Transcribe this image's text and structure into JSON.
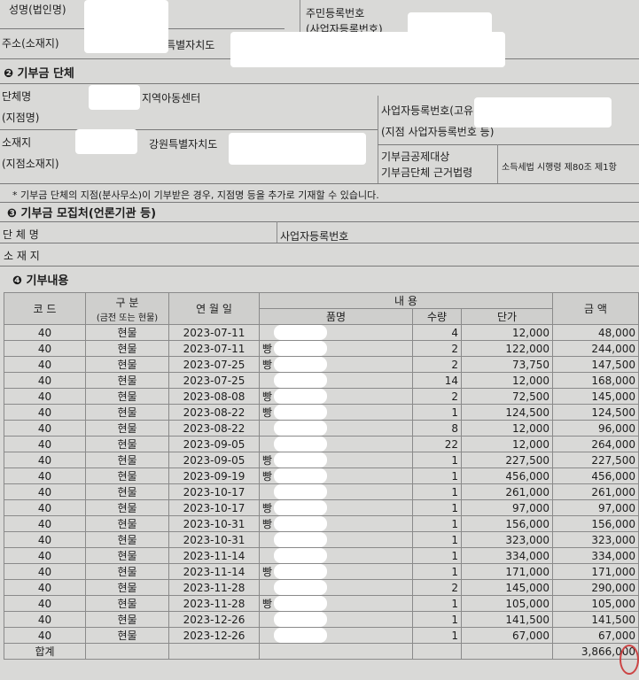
{
  "donor": {
    "name_label": "성명(법인명)",
    "id_label": "주민등록번호",
    "id_label2": "(사업자등록번호)",
    "address_label": "주소(소재지)",
    "address_value": "강원특별자치도"
  },
  "org": {
    "section": "❷ 기부금 단체",
    "name_label": "단체명",
    "branch_label": "(지점명)",
    "name_value": "지역아동센터",
    "reg_label": "사업자등록번호(고유",
    "reg_label2": "(지점 사업자등록번호 등)",
    "loc_label": "소재지",
    "loc_label2": "(지점소재지)",
    "loc_value": "강원특별자치도",
    "law_label": "기부금공제대상",
    "law_label2": "기부금단체 근거법령",
    "law_value": "소득세법 시행령 제80조 제1항",
    "note": "* 기부금 단체의 지점(분사무소)이 기부받은 경우, 지점명 등을 추가로 기재할 수 있습니다."
  },
  "collector": {
    "section": "❸ 기부금 모집처(언론기관 등)",
    "name_label": "단 체 명",
    "reg_label": "사업자등록번호",
    "loc_label": "소 재 지"
  },
  "donation": {
    "section": "❹ 기부내용",
    "headers": {
      "code": "코 드",
      "type": "구 분",
      "type2": "(금전 또는 현물)",
      "date": "연 월 일",
      "content": "내 용",
      "item": "품명",
      "qty": "수량",
      "price": "단가",
      "amount": "금 액"
    },
    "rows": [
      [
        "40",
        "현물",
        "2023-07-11",
        "",
        "4",
        "12,000",
        "48,000"
      ],
      [
        "40",
        "현물",
        "2023-07-11",
        "빵",
        "2",
        "122,000",
        "244,000"
      ],
      [
        "40",
        "현물",
        "2023-07-25",
        "빵",
        "2",
        "73,750",
        "147,500"
      ],
      [
        "40",
        "현물",
        "2023-07-25",
        "",
        "14",
        "12,000",
        "168,000"
      ],
      [
        "40",
        "현물",
        "2023-08-08",
        "빵",
        "2",
        "72,500",
        "145,000"
      ],
      [
        "40",
        "현물",
        "2023-08-22",
        "빵",
        "1",
        "124,500",
        "124,500"
      ],
      [
        "40",
        "현물",
        "2023-08-22",
        "",
        "8",
        "12,000",
        "96,000"
      ],
      [
        "40",
        "현물",
        "2023-09-05",
        "",
        "22",
        "12,000",
        "264,000"
      ],
      [
        "40",
        "현물",
        "2023-09-05",
        "빵",
        "1",
        "227,500",
        "227,500"
      ],
      [
        "40",
        "현물",
        "2023-09-19",
        "빵",
        "1",
        "456,000",
        "456,000"
      ],
      [
        "40",
        "현물",
        "2023-10-17",
        "",
        "1",
        "261,000",
        "261,000"
      ],
      [
        "40",
        "현물",
        "2023-10-17",
        "빵",
        "1",
        "97,000",
        "97,000"
      ],
      [
        "40",
        "현물",
        "2023-10-31",
        "빵",
        "1",
        "156,000",
        "156,000"
      ],
      [
        "40",
        "현물",
        "2023-10-31",
        "",
        "1",
        "323,000",
        "323,000"
      ],
      [
        "40",
        "현물",
        "2023-11-14",
        "",
        "1",
        "334,000",
        "334,000"
      ],
      [
        "40",
        "현물",
        "2023-11-14",
        "빵",
        "1",
        "171,000",
        "171,000"
      ],
      [
        "40",
        "현물",
        "2023-11-28",
        "",
        "2",
        "145,000",
        "290,000"
      ],
      [
        "40",
        "현물",
        "2023-11-28",
        "빵",
        "1",
        "105,000",
        "105,000"
      ],
      [
        "40",
        "현물",
        "2023-12-26",
        "",
        "1",
        "141,500",
        "141,500"
      ],
      [
        "40",
        "현물",
        "2023-12-26",
        "",
        "1",
        "67,000",
        "67,000"
      ]
    ],
    "total_label": "합계",
    "total": "3,866,000"
  },
  "stamp": "인"
}
